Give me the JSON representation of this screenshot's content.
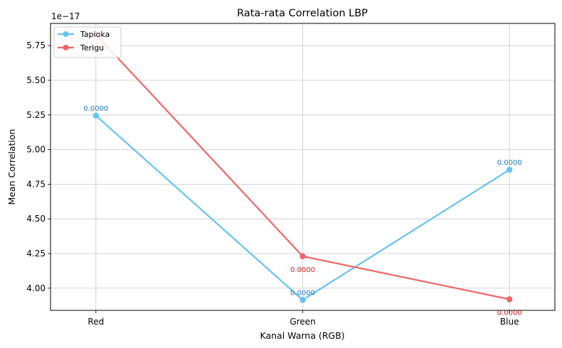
{
  "chart_data": {
    "type": "line",
    "title": "Rata-rata Correlation LBP",
    "xlabel": "Kanal Warna (RGB)",
    "ylabel": "Mean Correlation",
    "y_offset_label": "1e−17",
    "categories": [
      "Red",
      "Green",
      "Blue"
    ],
    "ylim": [
      3.84,
      5.91
    ],
    "y_scale_multiplier": 1e-17,
    "yticks": [
      4.0,
      4.25,
      4.5,
      4.75,
      5.0,
      5.25,
      5.5,
      5.75
    ],
    "ytick_labels": [
      "4.00",
      "4.25",
      "4.50",
      "4.75",
      "5.00",
      "5.25",
      "5.50",
      "5.75"
    ],
    "grid": true,
    "legend_position": "top-left",
    "series": [
      {
        "name": "Tapioka",
        "color": "#66c2f5",
        "label_color": "#1f77c4",
        "values": [
          5.245,
          3.915,
          4.855
        ],
        "data_labels": [
          "0.0000",
          "0.0000",
          "0.0000"
        ],
        "label_side": [
          "above",
          "above",
          "above"
        ]
      },
      {
        "name": "Terigu",
        "color": "#f26666",
        "label_color": "#cc2222",
        "values": [
          5.83,
          4.23,
          3.92
        ],
        "data_labels": [
          "0.0000",
          "0.0000",
          "0.0000"
        ],
        "label_side": [
          "below",
          "below",
          "below"
        ]
      }
    ]
  }
}
